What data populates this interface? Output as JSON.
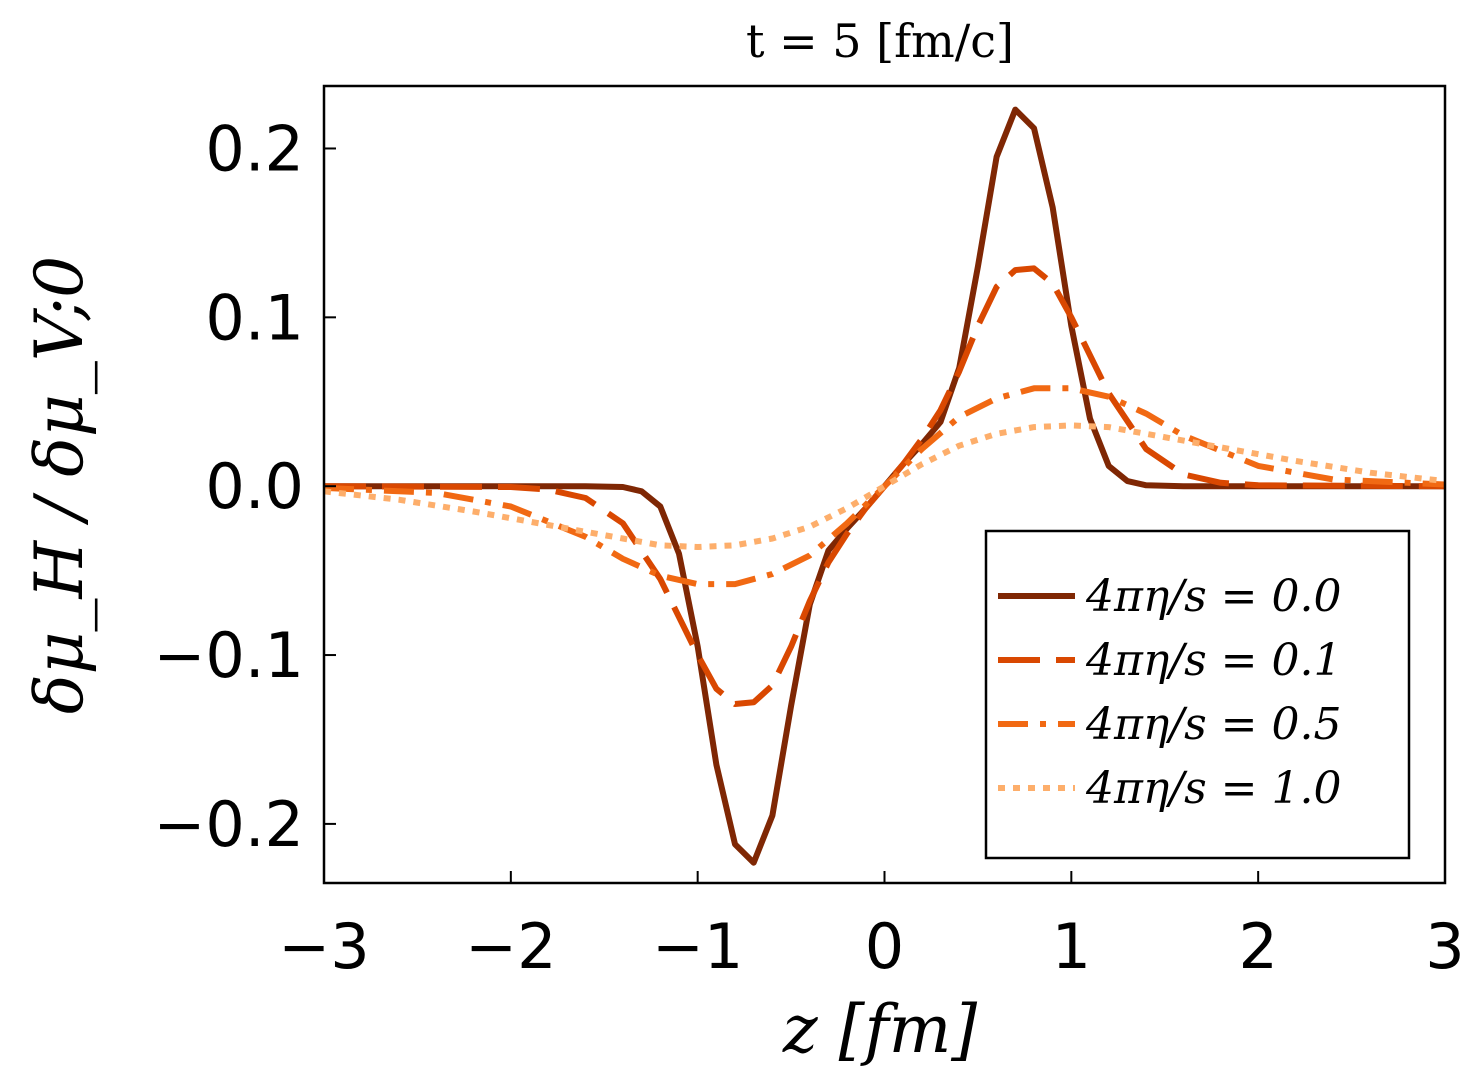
{
  "chart_data": {
    "type": "line",
    "title": "t = 5 [fm/c]",
    "xlabel": "z [fm]",
    "ylabel": "δμ_H / δμ_V;0",
    "xlim": [
      -3,
      3
    ],
    "ylim": [
      -0.235,
      0.237
    ],
    "xticks": [
      -3,
      -2,
      -1,
      0,
      1,
      2,
      3
    ],
    "xtick_labels": [
      "−3",
      "−2",
      "−1",
      "0",
      "1",
      "2",
      "3"
    ],
    "yticks": [
      -0.2,
      -0.1,
      0.0,
      0.1,
      0.2
    ],
    "ytick_labels": [
      "−0.2",
      "−0.1",
      "0.0",
      "0.1",
      "0.2"
    ],
    "grid": false,
    "legend_position": "bottom-right",
    "series": [
      {
        "name": "4πη/s = 0.0",
        "color": "#7f2704",
        "dash": "solid",
        "x": [
          -3.0,
          -1.6,
          -1.4,
          -1.3,
          -1.2,
          -1.1,
          -1.0,
          -0.9,
          -0.8,
          -0.7,
          -0.6,
          -0.5,
          -0.4,
          -0.3,
          -0.2,
          -0.1,
          0.0,
          0.1,
          0.2,
          0.3,
          0.4,
          0.5,
          0.6,
          0.7,
          0.8,
          0.9,
          1.0,
          1.1,
          1.2,
          1.3,
          1.4,
          1.6,
          3.0
        ],
        "y": [
          0.0,
          0.0,
          -0.0005,
          -0.003,
          -0.012,
          -0.04,
          -0.095,
          -0.165,
          -0.212,
          -0.223,
          -0.195,
          -0.13,
          -0.07,
          -0.038,
          -0.025,
          -0.013,
          0.0,
          0.013,
          0.025,
          0.038,
          0.07,
          0.13,
          0.195,
          0.223,
          0.212,
          0.165,
          0.095,
          0.04,
          0.012,
          0.003,
          0.0005,
          0.0,
          0.0
        ]
      },
      {
        "name": "4πη/s = 0.1",
        "color": "#d94801",
        "dash": "long-dash",
        "x": [
          -3.0,
          -2.0,
          -1.8,
          -1.6,
          -1.4,
          -1.2,
          -1.0,
          -0.9,
          -0.8,
          -0.7,
          -0.6,
          -0.5,
          -0.4,
          -0.3,
          -0.2,
          -0.1,
          0.0,
          0.1,
          0.2,
          0.3,
          0.4,
          0.5,
          0.6,
          0.7,
          0.8,
          0.9,
          1.0,
          1.2,
          1.4,
          1.6,
          1.8,
          2.0,
          3.0
        ],
        "y": [
          0.0,
          -0.0005,
          -0.002,
          -0.007,
          -0.022,
          -0.055,
          -0.1,
          -0.12,
          -0.129,
          -0.128,
          -0.118,
          -0.095,
          -0.068,
          -0.045,
          -0.028,
          -0.013,
          0.0,
          0.013,
          0.028,
          0.045,
          0.068,
          0.095,
          0.118,
          0.128,
          0.129,
          0.12,
          0.1,
          0.055,
          0.022,
          0.007,
          0.002,
          0.0005,
          0.0
        ]
      },
      {
        "name": "4πη/s = 0.5",
        "color": "#f16913",
        "dash": "dash-dot",
        "x": [
          -3.0,
          -2.4,
          -2.0,
          -1.6,
          -1.4,
          -1.2,
          -1.0,
          -0.8,
          -0.6,
          -0.4,
          -0.2,
          0.0,
          0.2,
          0.4,
          0.6,
          0.8,
          1.0,
          1.2,
          1.4,
          1.6,
          2.0,
          2.4,
          3.0
        ],
        "y": [
          -0.001,
          -0.004,
          -0.012,
          -0.03,
          -0.043,
          -0.053,
          -0.058,
          -0.058,
          -0.052,
          -0.041,
          -0.022,
          0.0,
          0.022,
          0.041,
          0.052,
          0.058,
          0.058,
          0.053,
          0.043,
          0.03,
          0.012,
          0.004,
          0.001
        ]
      },
      {
        "name": "4πη/s = 1.0",
        "color": "#fdae6b",
        "dash": "dotted",
        "x": [
          -3.0,
          -2.6,
          -2.2,
          -1.8,
          -1.6,
          -1.4,
          -1.2,
          -1.0,
          -0.8,
          -0.6,
          -0.4,
          -0.2,
          0.0,
          0.2,
          0.4,
          0.6,
          0.8,
          1.0,
          1.2,
          1.4,
          1.6,
          1.8,
          2.2,
          2.6,
          3.0
        ],
        "y": [
          -0.003,
          -0.008,
          -0.015,
          -0.023,
          -0.027,
          -0.031,
          -0.035,
          -0.036,
          -0.035,
          -0.031,
          -0.024,
          -0.013,
          0.0,
          0.013,
          0.024,
          0.031,
          0.035,
          0.036,
          0.035,
          0.031,
          0.027,
          0.023,
          0.015,
          0.008,
          0.003
        ]
      }
    ]
  }
}
